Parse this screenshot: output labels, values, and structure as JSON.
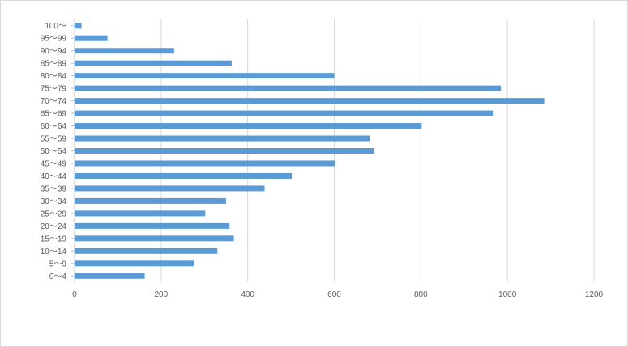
{
  "chart_data": {
    "type": "bar",
    "orientation": "horizontal",
    "title": "",
    "xlabel": "",
    "ylabel": "",
    "categories": [
      "0〜4",
      "5〜9",
      "10〜14",
      "15〜19",
      "20〜24",
      "25〜29",
      "30〜34",
      "35〜39",
      "40〜44",
      "45〜49",
      "50〜54",
      "55〜59",
      "60〜64",
      "65〜69",
      "70〜74",
      "75〜79",
      "80〜84",
      "85〜89",
      "90〜94",
      "95〜99",
      "100〜"
    ],
    "values": [
      162,
      276,
      330,
      368,
      358,
      302,
      350,
      439,
      502,
      603,
      692,
      682,
      802,
      968,
      1085,
      985,
      600,
      363,
      230,
      76,
      16
    ],
    "xlim": [
      0,
      1200
    ],
    "xticks": [
      0,
      200,
      400,
      600,
      800,
      1000,
      1200
    ],
    "grid": "vertical",
    "legend": "none",
    "bar_color": "#5b9bd5",
    "grid_color": "#d9d9d9",
    "axis_color": "#bfbfbf",
    "label_color": "#595959"
  }
}
